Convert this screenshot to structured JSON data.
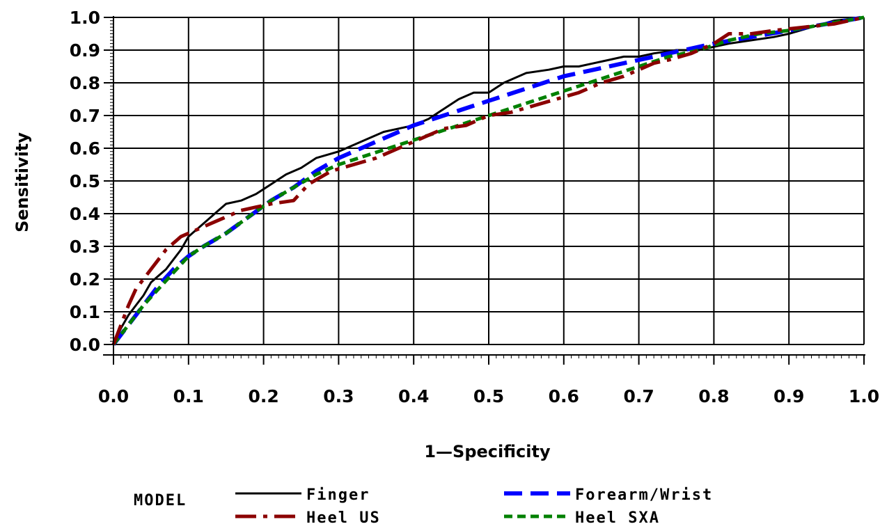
{
  "chart_data": {
    "type": "line",
    "title": "",
    "xlabel": "1—Specificity",
    "ylabel": "Sensitivity",
    "xlim": [
      0.0,
      1.0
    ],
    "ylim": [
      0.0,
      1.0
    ],
    "x_ticks": [
      "0.0",
      "0.1",
      "0.2",
      "0.3",
      "0.4",
      "0.5",
      "0.6",
      "0.7",
      "0.8",
      "0.9",
      "1.0"
    ],
    "y_ticks": [
      "0.0",
      "0.1",
      "0.2",
      "0.3",
      "0.4",
      "0.5",
      "0.6",
      "0.7",
      "0.8",
      "0.9",
      "1.0"
    ],
    "grid": true,
    "legend_title": "MODEL",
    "legend_position": "bottom",
    "series": [
      {
        "name": "Finger",
        "color": "#000000",
        "dash": "solid",
        "points": [
          [
            0,
            0
          ],
          [
            0.01,
            0.05
          ],
          [
            0.02,
            0.09
          ],
          [
            0.03,
            0.12
          ],
          [
            0.04,
            0.15
          ],
          [
            0.05,
            0.19
          ],
          [
            0.06,
            0.21
          ],
          [
            0.07,
            0.23
          ],
          [
            0.08,
            0.26
          ],
          [
            0.09,
            0.29
          ],
          [
            0.1,
            0.33
          ],
          [
            0.12,
            0.37
          ],
          [
            0.14,
            0.41
          ],
          [
            0.15,
            0.43
          ],
          [
            0.17,
            0.44
          ],
          [
            0.19,
            0.46
          ],
          [
            0.21,
            0.49
          ],
          [
            0.23,
            0.52
          ],
          [
            0.25,
            0.54
          ],
          [
            0.27,
            0.57
          ],
          [
            0.3,
            0.59
          ],
          [
            0.32,
            0.61
          ],
          [
            0.34,
            0.63
          ],
          [
            0.36,
            0.65
          ],
          [
            0.38,
            0.66
          ],
          [
            0.4,
            0.67
          ],
          [
            0.42,
            0.69
          ],
          [
            0.44,
            0.72
          ],
          [
            0.46,
            0.75
          ],
          [
            0.48,
            0.77
          ],
          [
            0.5,
            0.77
          ],
          [
            0.52,
            0.8
          ],
          [
            0.55,
            0.83
          ],
          [
            0.58,
            0.84
          ],
          [
            0.6,
            0.85
          ],
          [
            0.62,
            0.85
          ],
          [
            0.64,
            0.86
          ],
          [
            0.66,
            0.87
          ],
          [
            0.68,
            0.88
          ],
          [
            0.7,
            0.88
          ],
          [
            0.72,
            0.89
          ],
          [
            0.75,
            0.9
          ],
          [
            0.78,
            0.9
          ],
          [
            0.8,
            0.91
          ],
          [
            0.82,
            0.92
          ],
          [
            0.85,
            0.93
          ],
          [
            0.88,
            0.94
          ],
          [
            0.9,
            0.95
          ],
          [
            0.93,
            0.97
          ],
          [
            0.96,
            0.99
          ],
          [
            1,
            1
          ]
        ]
      },
      {
        "name": "Forearm/Wrist",
        "color": "#0000ff",
        "dash": "long",
        "points": [
          [
            0,
            0
          ],
          [
            0.02,
            0.06
          ],
          [
            0.04,
            0.12
          ],
          [
            0.06,
            0.18
          ],
          [
            0.08,
            0.23
          ],
          [
            0.1,
            0.27
          ],
          [
            0.12,
            0.3
          ],
          [
            0.15,
            0.34
          ],
          [
            0.18,
            0.39
          ],
          [
            0.21,
            0.44
          ],
          [
            0.24,
            0.48
          ],
          [
            0.27,
            0.53
          ],
          [
            0.3,
            0.57
          ],
          [
            0.33,
            0.6
          ],
          [
            0.36,
            0.63
          ],
          [
            0.4,
            0.67
          ],
          [
            0.44,
            0.7
          ],
          [
            0.48,
            0.73
          ],
          [
            0.52,
            0.76
          ],
          [
            0.56,
            0.79
          ],
          [
            0.6,
            0.82
          ],
          [
            0.64,
            0.84
          ],
          [
            0.68,
            0.86
          ],
          [
            0.72,
            0.88
          ],
          [
            0.76,
            0.9
          ],
          [
            0.8,
            0.92
          ],
          [
            0.85,
            0.94
          ],
          [
            0.9,
            0.96
          ],
          [
            0.95,
            0.98
          ],
          [
            1,
            1
          ]
        ]
      },
      {
        "name": "Heel US",
        "color": "#8b0000",
        "dash": "dashdot",
        "points": [
          [
            0,
            0
          ],
          [
            0.01,
            0.06
          ],
          [
            0.02,
            0.12
          ],
          [
            0.03,
            0.17
          ],
          [
            0.04,
            0.2
          ],
          [
            0.05,
            0.23
          ],
          [
            0.06,
            0.26
          ],
          [
            0.07,
            0.29
          ],
          [
            0.08,
            0.31
          ],
          [
            0.09,
            0.33
          ],
          [
            0.11,
            0.35
          ],
          [
            0.13,
            0.37
          ],
          [
            0.15,
            0.39
          ],
          [
            0.17,
            0.41
          ],
          [
            0.19,
            0.42
          ],
          [
            0.21,
            0.43
          ],
          [
            0.24,
            0.44
          ],
          [
            0.26,
            0.49
          ],
          [
            0.29,
            0.53
          ],
          [
            0.32,
            0.55
          ],
          [
            0.35,
            0.57
          ],
          [
            0.38,
            0.6
          ],
          [
            0.41,
            0.63
          ],
          [
            0.44,
            0.66
          ],
          [
            0.47,
            0.67
          ],
          [
            0.5,
            0.7
          ],
          [
            0.53,
            0.71
          ],
          [
            0.56,
            0.73
          ],
          [
            0.59,
            0.75
          ],
          [
            0.62,
            0.77
          ],
          [
            0.65,
            0.8
          ],
          [
            0.68,
            0.82
          ],
          [
            0.7,
            0.84
          ],
          [
            0.72,
            0.86
          ],
          [
            0.74,
            0.87
          ],
          [
            0.77,
            0.89
          ],
          [
            0.8,
            0.92
          ],
          [
            0.82,
            0.95
          ],
          [
            0.85,
            0.95
          ],
          [
            0.88,
            0.96
          ],
          [
            0.92,
            0.97
          ],
          [
            0.96,
            0.98
          ],
          [
            1,
            1
          ]
        ]
      },
      {
        "name": "Heel SXA",
        "color": "#008000",
        "dash": "short",
        "points": [
          [
            0,
            0
          ],
          [
            0.02,
            0.06
          ],
          [
            0.04,
            0.12
          ],
          [
            0.06,
            0.17
          ],
          [
            0.08,
            0.22
          ],
          [
            0.1,
            0.27
          ],
          [
            0.12,
            0.3
          ],
          [
            0.15,
            0.34
          ],
          [
            0.18,
            0.39
          ],
          [
            0.21,
            0.44
          ],
          [
            0.24,
            0.48
          ],
          [
            0.27,
            0.52
          ],
          [
            0.3,
            0.55
          ],
          [
            0.34,
            0.58
          ],
          [
            0.38,
            0.61
          ],
          [
            0.42,
            0.64
          ],
          [
            0.46,
            0.67
          ],
          [
            0.5,
            0.7
          ],
          [
            0.54,
            0.73
          ],
          [
            0.58,
            0.76
          ],
          [
            0.62,
            0.79
          ],
          [
            0.66,
            0.82
          ],
          [
            0.7,
            0.85
          ],
          [
            0.74,
            0.88
          ],
          [
            0.78,
            0.9
          ],
          [
            0.82,
            0.93
          ],
          [
            0.86,
            0.95
          ],
          [
            0.9,
            0.96
          ],
          [
            0.95,
            0.98
          ],
          [
            1,
            1
          ]
        ]
      }
    ]
  }
}
